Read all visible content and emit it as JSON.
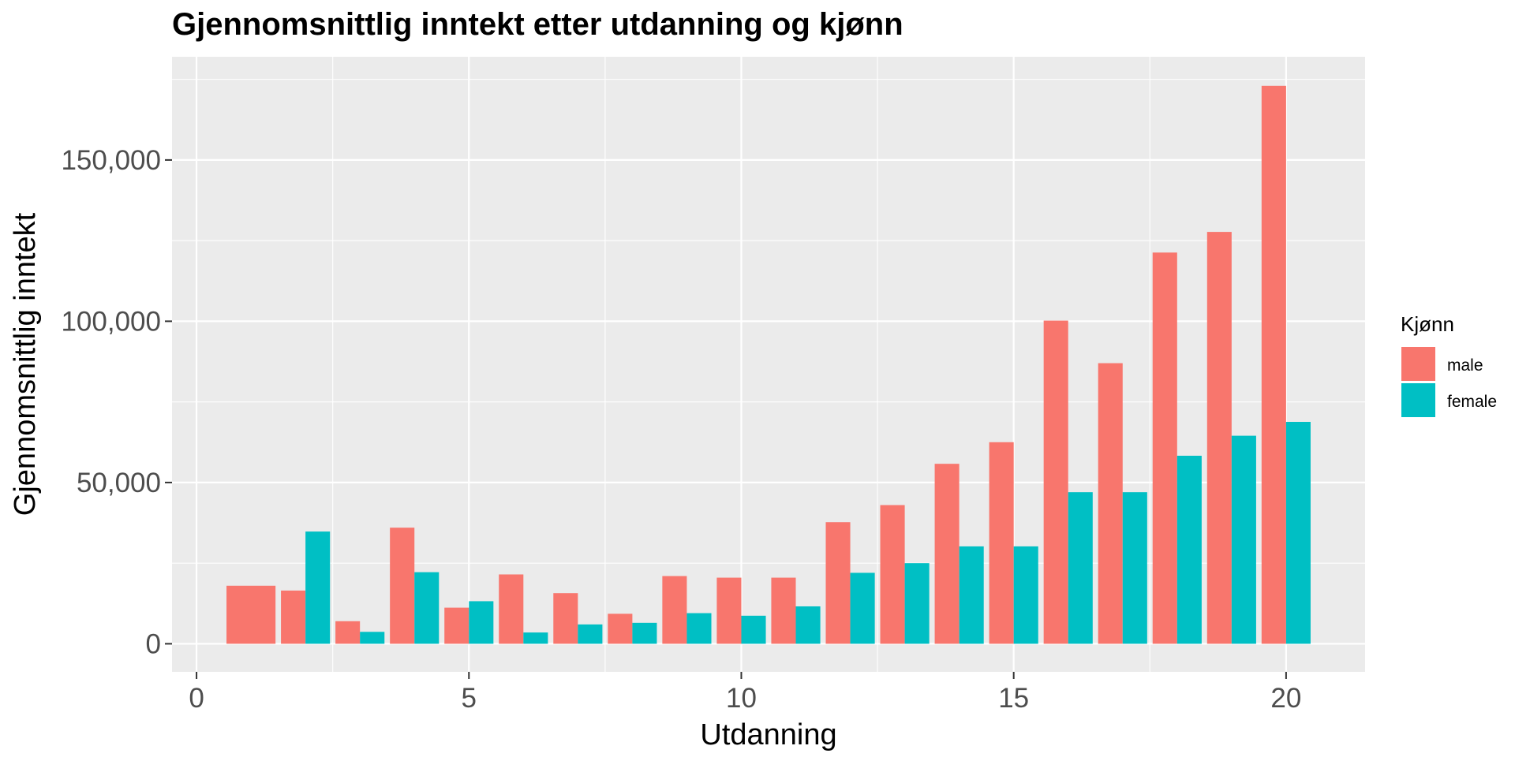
{
  "chart_data": {
    "type": "bar",
    "title": "Gjennomsnittlig inntekt etter utdanning og kjønn",
    "xlabel": "Utdanning",
    "ylabel": "Gjennomsnittlig inntekt",
    "x_ticks": [
      "0",
      "5",
      "10",
      "15",
      "20"
    ],
    "y_ticks": [
      "0",
      "50,000",
      "100,000",
      "150,000"
    ],
    "xlim": [
      -0.45,
      21.45
    ],
    "ylim": [
      -8700,
      182000
    ],
    "grid": true,
    "legend": {
      "title": "Kjønn",
      "position": "right",
      "entries": [
        "male",
        "female"
      ]
    },
    "series": [
      {
        "name": "male",
        "color": "#F8766D",
        "points": [
          {
            "x": 1,
            "y": 18000
          },
          {
            "x": 2,
            "y": 16500
          },
          {
            "x": 3,
            "y": 7000
          },
          {
            "x": 4,
            "y": 36000
          },
          {
            "x": 5,
            "y": 11200
          },
          {
            "x": 6,
            "y": 21500
          },
          {
            "x": 7,
            "y": 15700
          },
          {
            "x": 8,
            "y": 9300
          },
          {
            "x": 9,
            "y": 21000
          },
          {
            "x": 10,
            "y": 20500
          },
          {
            "x": 11,
            "y": 20500
          },
          {
            "x": 12,
            "y": 37700
          },
          {
            "x": 13,
            "y": 43000
          },
          {
            "x": 14,
            "y": 55800
          },
          {
            "x": 15,
            "y": 62500
          },
          {
            "x": 16,
            "y": 100200
          },
          {
            "x": 17,
            "y": 87000
          },
          {
            "x": 18,
            "y": 121300
          },
          {
            "x": 19,
            "y": 127700
          },
          {
            "x": 20,
            "y": 173000
          }
        ]
      },
      {
        "name": "female",
        "color": "#00BFC4",
        "points": [
          {
            "x": 2,
            "y": 34800
          },
          {
            "x": 3,
            "y": 3700
          },
          {
            "x": 4,
            "y": 22200
          },
          {
            "x": 5,
            "y": 13200
          },
          {
            "x": 6,
            "y": 3500
          },
          {
            "x": 7,
            "y": 6000
          },
          {
            "x": 8,
            "y": 6500
          },
          {
            "x": 9,
            "y": 9500
          },
          {
            "x": 10,
            "y": 8700
          },
          {
            "x": 11,
            "y": 11600
          },
          {
            "x": 12,
            "y": 22000
          },
          {
            "x": 13,
            "y": 25000
          },
          {
            "x": 14,
            "y": 30200
          },
          {
            "x": 15,
            "y": 30200
          },
          {
            "x": 16,
            "y": 47000
          },
          {
            "x": 17,
            "y": 47000
          },
          {
            "x": 18,
            "y": 58300
          },
          {
            "x": 19,
            "y": 64500
          },
          {
            "x": 20,
            "y": 68800
          }
        ]
      }
    ]
  }
}
